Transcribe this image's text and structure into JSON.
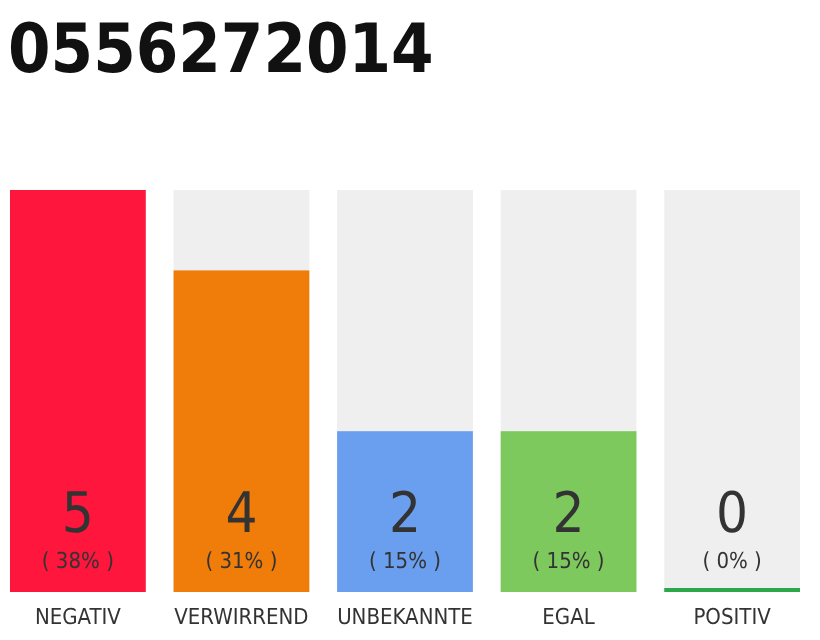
{
  "chart_data": {
    "type": "bar",
    "title": "0556272014",
    "categories": [
      "NEGATIV",
      "VERWIRREND",
      "UNBEKANNTE",
      "EGAL",
      "POSITIV"
    ],
    "values": [
      5,
      4,
      2,
      2,
      0
    ],
    "colors": [
      "#fe163c",
      "#f07c0a",
      "#6a9ff0",
      "#7dc95e",
      "#2ca84a"
    ],
    "value_labels": [
      "5\n( 38% )",
      "4\n( 31% )",
      "2\n( 15% )",
      "2\n( 15% )",
      "0\n( 0% )"
    ],
    "tick_labels": "x"
  }
}
